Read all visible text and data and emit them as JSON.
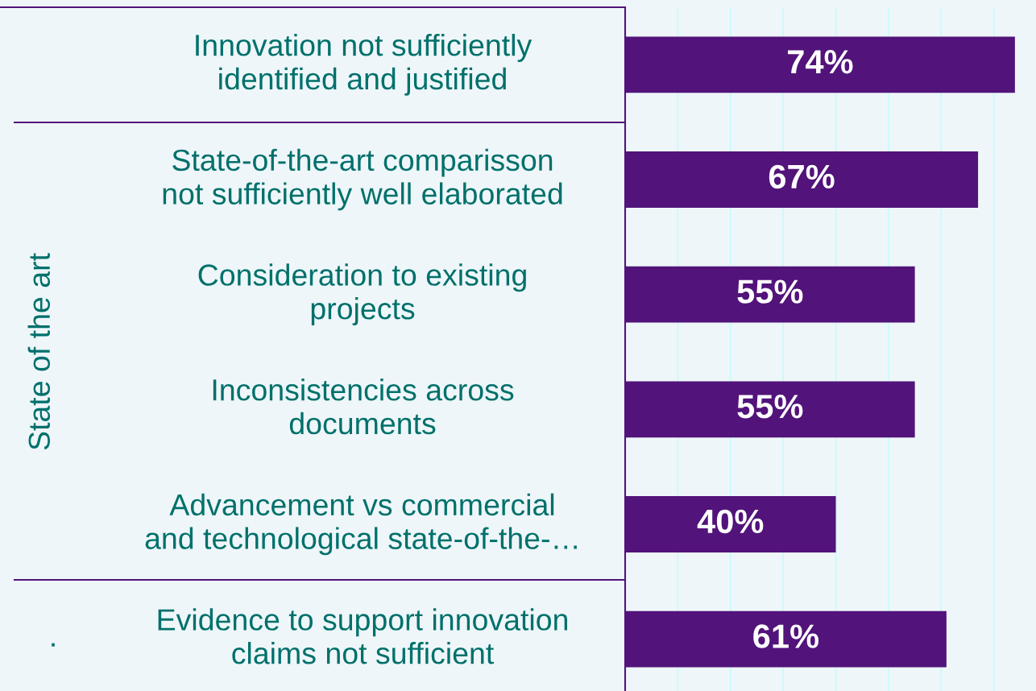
{
  "chart_data": {
    "type": "bar",
    "orientation": "horizontal",
    "categories": [
      "Innovation not sufficiently\nidentified and justified",
      "State-of-the-art comparisson\nnot sufficiently well elaborated",
      "Consideration to existing\nprojects",
      "Inconsistencies across\ndocuments",
      "Advancement vs commercial\nand technological state-of-the-…",
      "Evidence to support innovation\nclaims not sufficient"
    ],
    "values": [
      74,
      67,
      55,
      55,
      40,
      61
    ],
    "value_labels": [
      "74%",
      "67%",
      "55%",
      "55%",
      "40%",
      "61%"
    ],
    "color": "#52137a",
    "xlim": [
      0,
      78
    ],
    "xticks": [
      {
        "value": 10,
        "label": null
      },
      {
        "value": 20,
        "label": null
      },
      {
        "value": 30,
        "label": null
      },
      {
        "value": 40,
        "label": null
      },
      {
        "value": 50,
        "label": null
      },
      {
        "value": 60,
        "label": null
      },
      {
        "value": 70,
        "label": null
      }
    ],
    "tick_labels": "y",
    "grid": "x",
    "annotations": [
      "State of the art",
      "."
    ]
  }
}
